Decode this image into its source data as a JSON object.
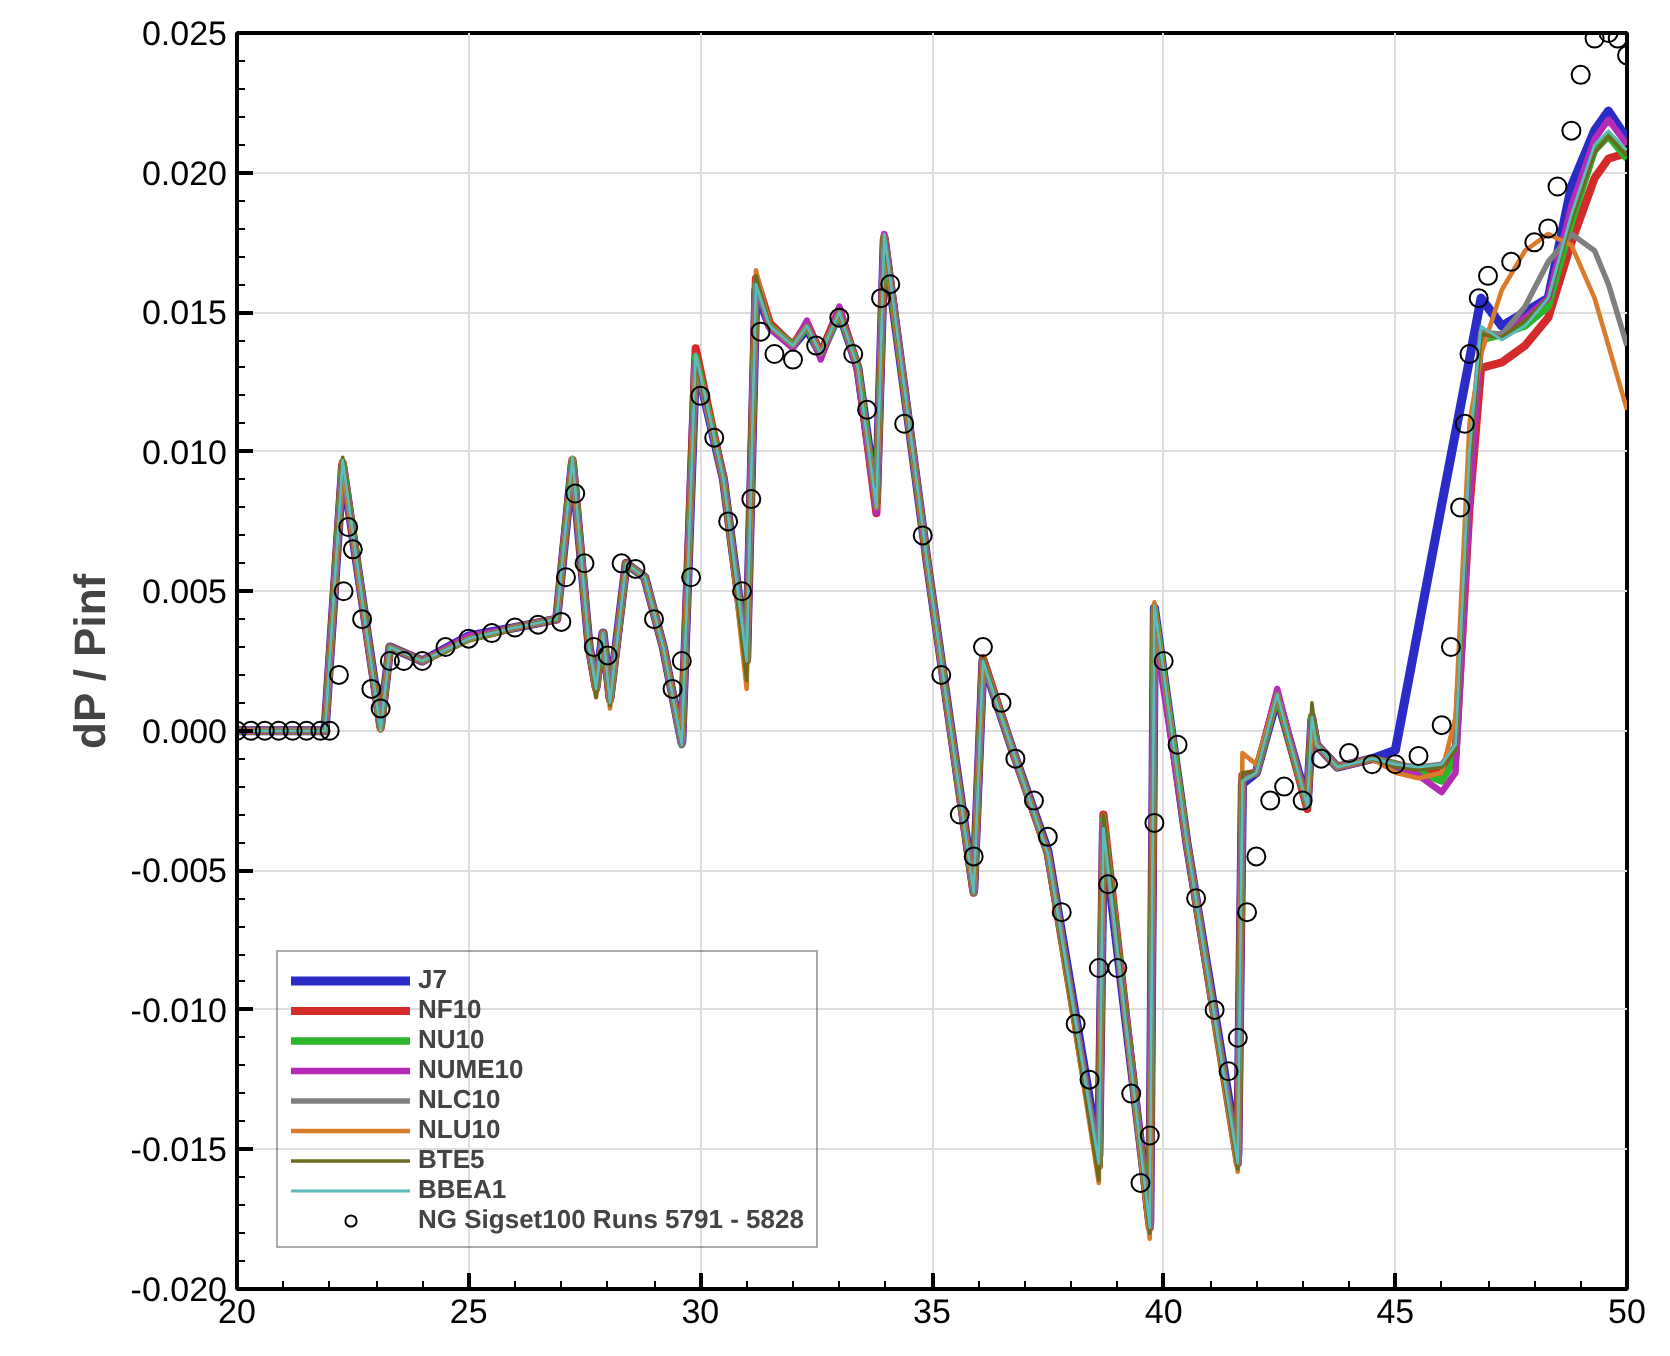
{
  "chart_data": {
    "type": "line",
    "ylabel": "dP / Pinf",
    "x": [
      20,
      21.9,
      22.28,
      23.1,
      23.3,
      24,
      25,
      26,
      26.9,
      27.24,
      27.6,
      27.75,
      27.9,
      28.05,
      28.4,
      28.8,
      29.2,
      29.6,
      29.9,
      30.5,
      31.0,
      31.2,
      31.5,
      32,
      32.3,
      32.6,
      33,
      33.4,
      33.8,
      33.97,
      34.9,
      35.9,
      36.1,
      36.7,
      37.5,
      38.6,
      38.7,
      39.7,
      39.8,
      40.5,
      41.6,
      41.7,
      42.0,
      42.45,
      43.1,
      43.2,
      43.3,
      43.75,
      44.5,
      45.0,
      45.5,
      46.0,
      46.3,
      46.6,
      46.85,
      47.3,
      47.8,
      48.3,
      48.8,
      49.3,
      49.6,
      50
    ],
    "xlim": [
      20,
      50
    ],
    "ylim": [
      -0.02,
      0.025
    ],
    "xticks": [
      20,
      25,
      30,
      35,
      40,
      45,
      50
    ],
    "yticks": [
      {
        "value": -0.02,
        "label": "-0.020"
      },
      {
        "value": -0.015,
        "label": "-0.015"
      },
      {
        "value": -0.01,
        "label": "-0.010"
      },
      {
        "value": -0.005,
        "label": "-0.005"
      },
      {
        "value": 0,
        "label": "0.000"
      },
      {
        "value": 0.005,
        "label": "0.005"
      },
      {
        "value": 0.01,
        "label": "0.010"
      },
      {
        "value": 0.015,
        "label": "0.015"
      },
      {
        "value": 0.02,
        "label": "0.020"
      },
      {
        "value": 0.025,
        "label": "0.025"
      }
    ],
    "grid": true,
    "legend": "bottom left",
    "series": [
      {
        "name": "J7",
        "color": "#2b2bc8",
        "values": [
          0,
          0,
          0.0095,
          0.0002,
          0.003,
          0.0025,
          0.0034,
          0.0037,
          0.004,
          0.0096,
          0.003,
          0.0016,
          0.0035,
          0.0012,
          0.006,
          0.0055,
          0.003,
          -0.0004,
          0.0133,
          0.009,
          0.0026,
          0.0158,
          0.0145,
          0.0138,
          0.0144,
          0.0135,
          0.015,
          0.013,
          0.0082,
          0.0176,
          0.006,
          -0.0057,
          0.0025,
          -0.0005,
          -0.0043,
          -0.0152,
          -0.0036,
          -0.0176,
          0.0044,
          -0.004,
          -0.0152,
          -0.0019,
          -0.0015,
          0.0012,
          -0.0026,
          0.0004,
          -0.0005,
          -0.0013,
          -0.001,
          -0.0007,
          0.0037,
          0.0081,
          0.0107,
          0.0133,
          0.0155,
          0.0145,
          0.015,
          0.0155,
          0.0195,
          0.0215,
          0.0222,
          0.0212
        ]
      },
      {
        "name": "NF10",
        "color": "#d42a2a",
        "values": [
          0,
          0,
          0.0096,
          0.0001,
          0.003,
          0.0025,
          0.0033,
          0.0037,
          0.004,
          0.0097,
          0.003,
          0.0015,
          0.0035,
          0.0011,
          0.006,
          0.0055,
          0.003,
          -0.0004,
          0.0137,
          0.009,
          0.0025,
          0.0162,
          0.0146,
          0.0138,
          0.0146,
          0.0135,
          0.0151,
          0.013,
          0.0078,
          0.0177,
          0.006,
          -0.0058,
          0.0026,
          -0.0005,
          -0.0044,
          -0.0156,
          -0.003,
          -0.0178,
          0.0042,
          -0.004,
          -0.0155,
          -0.0016,
          -0.0015,
          0.0013,
          -0.0028,
          0.0005,
          -0.0005,
          -0.0013,
          -0.001,
          -0.0012,
          -0.0014,
          -0.0015,
          -0.0008,
          0.008,
          0.013,
          0.0132,
          0.0138,
          0.0148,
          0.0175,
          0.0198,
          0.0205,
          0.0207
        ]
      },
      {
        "name": "NU10",
        "color": "#2bb52b",
        "values": [
          0,
          0,
          0.0096,
          0.0001,
          0.003,
          0.0025,
          0.0033,
          0.0037,
          0.004,
          0.0097,
          0.003,
          0.0015,
          0.0035,
          0.0011,
          0.006,
          0.0055,
          0.003,
          -0.0005,
          0.0134,
          0.009,
          0.0025,
          0.016,
          0.0145,
          0.0138,
          0.0145,
          0.0134,
          0.015,
          0.013,
          0.008,
          0.0177,
          0.006,
          -0.0058,
          0.0025,
          -0.0005,
          -0.0044,
          -0.0156,
          -0.0032,
          -0.0178,
          0.0044,
          -0.004,
          -0.0155,
          -0.0017,
          -0.0015,
          0.0013,
          -0.0027,
          0.0005,
          -0.0005,
          -0.0013,
          -0.001,
          -0.0012,
          -0.0015,
          -0.0018,
          -0.001,
          0.009,
          0.014,
          0.0142,
          0.0145,
          0.0152,
          0.0182,
          0.0208,
          0.0213,
          0.0205
        ]
      },
      {
        "name": "NUME10",
        "color": "#b52bb5",
        "values": [
          0,
          0,
          0.0095,
          0.0001,
          0.003,
          0.0025,
          0.0034,
          0.0037,
          0.004,
          0.0096,
          0.003,
          0.0015,
          0.0035,
          0.0011,
          0.006,
          0.0055,
          0.003,
          -0.0005,
          0.0132,
          0.009,
          0.0025,
          0.016,
          0.0144,
          0.0137,
          0.0147,
          0.0133,
          0.0152,
          0.0128,
          0.0078,
          0.0178,
          0.006,
          -0.0058,
          0.0025,
          -0.0005,
          -0.0044,
          -0.0155,
          -0.0033,
          -0.0178,
          0.0036,
          -0.004,
          -0.0155,
          -0.0017,
          -0.0015,
          0.0015,
          -0.0027,
          0.0004,
          -0.0005,
          -0.0013,
          -0.001,
          -0.0013,
          -0.0016,
          -0.0022,
          -0.0015,
          0.008,
          0.0142,
          0.0142,
          0.0148,
          0.0155,
          0.0188,
          0.0212,
          0.0219,
          0.021
        ]
      },
      {
        "name": "NLC10",
        "color": "#7f7f7f",
        "values": [
          0,
          0,
          0.0095,
          0.0001,
          0.003,
          0.0025,
          0.0033,
          0.0037,
          0.004,
          0.0096,
          0.003,
          0.0015,
          0.0035,
          0.0011,
          0.006,
          0.0055,
          0.003,
          -0.0005,
          0.0132,
          0.009,
          0.0025,
          0.016,
          0.0145,
          0.0138,
          0.0145,
          0.0135,
          0.015,
          0.013,
          0.008,
          0.0177,
          0.006,
          -0.0058,
          0.0025,
          -0.0005,
          -0.0044,
          -0.0155,
          -0.0034,
          -0.0178,
          0.0042,
          -0.004,
          -0.0155,
          -0.0018,
          -0.0015,
          0.0013,
          -0.0027,
          0.0005,
          -0.0005,
          -0.0013,
          -0.001,
          -0.0012,
          -0.0013,
          -0.0012,
          -0.0005,
          0.0098,
          0.0143,
          0.0142,
          0.0152,
          0.0168,
          0.0178,
          0.0172,
          0.016,
          0.0138
        ]
      },
      {
        "name": "NLU10",
        "color": "#d97b2b",
        "values": [
          0,
          0,
          0.0096,
          0.0,
          0.003,
          0.0025,
          0.0033,
          0.0037,
          0.004,
          0.0097,
          0.003,
          0.0012,
          0.0035,
          0.0008,
          0.006,
          0.0055,
          0.003,
          -0.0004,
          0.0134,
          0.009,
          0.0015,
          0.0165,
          0.0145,
          0.0138,
          0.0145,
          0.0135,
          0.015,
          0.013,
          0.008,
          0.0176,
          0.006,
          -0.0058,
          0.0026,
          -0.0005,
          -0.0044,
          -0.0162,
          -0.003,
          -0.0182,
          0.0046,
          -0.004,
          -0.0158,
          -0.0008,
          -0.0012,
          0.0013,
          -0.0027,
          0.0005,
          -0.0005,
          -0.0013,
          -0.001,
          -0.0015,
          -0.0017,
          -0.0015,
          0.0005,
          0.011,
          0.0135,
          0.0158,
          0.0172,
          0.0178,
          0.0174,
          0.0155,
          0.0138,
          0.0115
        ]
      },
      {
        "name": "BTE5",
        "color": "#6b6b1f",
        "values": [
          0,
          0,
          0.0098,
          0.0,
          0.003,
          0.0025,
          0.0033,
          0.0037,
          0.004,
          0.0098,
          0.003,
          0.0012,
          0.0035,
          0.0009,
          0.006,
          0.0055,
          0.003,
          -0.0005,
          0.0133,
          0.009,
          0.0018,
          0.0163,
          0.0145,
          0.0138,
          0.0145,
          0.0135,
          0.015,
          0.013,
          0.008,
          0.0177,
          0.006,
          -0.0058,
          0.0026,
          -0.0005,
          -0.0044,
          -0.0161,
          -0.003,
          -0.018,
          0.0045,
          -0.004,
          -0.0157,
          -0.0015,
          -0.0015,
          0.0013,
          -0.0027,
          0.001,
          -0.0005,
          -0.0013,
          -0.001,
          -0.0013,
          -0.0014,
          -0.0013,
          -0.0007,
          0.0095,
          0.0142,
          0.0141,
          0.0147,
          0.0155,
          0.0183,
          0.0207,
          0.0213,
          0.0206
        ]
      },
      {
        "name": "BBEA1",
        "color": "#5cbcbc",
        "values": [
          0,
          0,
          0.0097,
          0.0,
          0.003,
          0.0025,
          0.0033,
          0.0037,
          0.004,
          0.0098,
          0.003,
          0.0015,
          0.0035,
          0.001,
          0.006,
          0.0055,
          0.003,
          -0.0005,
          0.0135,
          0.009,
          0.0025,
          0.016,
          0.0145,
          0.0138,
          0.0145,
          0.0135,
          0.015,
          0.013,
          0.008,
          0.0178,
          0.006,
          -0.0058,
          0.0025,
          -0.0005,
          -0.0044,
          -0.0155,
          -0.0035,
          -0.0178,
          0.0045,
          -0.004,
          -0.0155,
          -0.0018,
          -0.0015,
          0.0013,
          -0.0027,
          0.0005,
          -0.0005,
          -0.0013,
          -0.001,
          -0.0012,
          -0.0013,
          -0.0012,
          -0.0005,
          0.01,
          0.0145,
          0.014,
          0.0145,
          0.0155,
          0.0185,
          0.021,
          0.0215,
          0.0208
        ]
      },
      {
        "name": "NG Sigset100 Runs 5791 - 5828",
        "type": "scatter",
        "marker": "circle",
        "color": "#000000",
        "x": [
          20,
          20.3,
          20.6,
          20.9,
          21.2,
          21.5,
          21.8,
          22.0,
          22.2,
          22.3,
          22.4,
          22.5,
          22.7,
          22.9,
          23.1,
          23.3,
          23.6,
          24,
          24.5,
          25,
          25.5,
          26,
          26.5,
          27,
          27.1,
          27.3,
          27.5,
          27.7,
          28,
          28.3,
          28.6,
          29,
          29.4,
          29.6,
          29.8,
          30.0,
          30.3,
          30.6,
          30.9,
          31.1,
          31.3,
          31.6,
          32,
          32.5,
          33,
          33.3,
          33.6,
          33.9,
          34.1,
          34.4,
          34.8,
          35.2,
          35.6,
          35.9,
          36.1,
          36.5,
          36.8,
          37.2,
          37.5,
          37.8,
          38.1,
          38.4,
          38.6,
          38.8,
          39.0,
          39.3,
          39.5,
          39.7,
          39.8,
          40.0,
          40.3,
          40.7,
          41.1,
          41.4,
          41.6,
          41.8,
          42.0,
          42.3,
          42.6,
          43.0,
          43.4,
          44.0,
          44.5,
          45,
          45.5,
          46.0,
          46.2,
          46.4,
          46.5,
          46.6,
          46.8,
          47.0,
          47.5,
          48,
          48.3,
          48.5,
          48.8,
          49.0,
          49.3,
          49.6,
          49.8,
          50
        ],
        "values": [
          0,
          0,
          0,
          0,
          0,
          0,
          0,
          0,
          0.002,
          0.005,
          0.0073,
          0.0065,
          0.004,
          0.0015,
          0.0008,
          0.0025,
          0.0025,
          0.0025,
          0.003,
          0.0033,
          0.0035,
          0.0037,
          0.0038,
          0.0039,
          0.0055,
          0.0085,
          0.006,
          0.003,
          0.0027,
          0.006,
          0.0058,
          0.004,
          0.0015,
          0.0025,
          0.0055,
          0.012,
          0.0105,
          0.0075,
          0.005,
          0.0083,
          0.0143,
          0.0135,
          0.0133,
          0.0138,
          0.0148,
          0.0135,
          0.0115,
          0.0155,
          0.016,
          0.011,
          0.007,
          0.002,
          -0.003,
          -0.0045,
          0.003,
          0.001,
          -0.001,
          -0.0025,
          -0.0038,
          -0.0065,
          -0.0105,
          -0.0125,
          -0.0085,
          -0.0055,
          -0.0085,
          -0.013,
          -0.0162,
          -0.0145,
          -0.0033,
          0.0025,
          -0.0005,
          -0.006,
          -0.01,
          -0.0122,
          -0.011,
          -0.0065,
          -0.0045,
          -0.0025,
          -0.002,
          -0.0025,
          -0.001,
          -0.0008,
          -0.0012,
          -0.0012,
          -0.0009,
          0.0002,
          0.003,
          0.008,
          0.011,
          0.0135,
          0.0155,
          0.0163,
          0.0168,
          0.0175,
          0.018,
          0.0195,
          0.0215,
          0.0235,
          0.0248,
          0.025,
          0.0248,
          0.0242
        ]
      }
    ]
  }
}
